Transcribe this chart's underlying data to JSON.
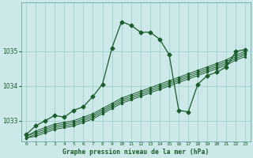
{
  "title": "Graphe pression niveau de la mer (hPa)",
  "background_color": "#cce8e8",
  "grid_color": "#99cccc",
  "line_color": "#1a5c2a",
  "x_labels": [
    "0",
    "1",
    "2",
    "3",
    "4",
    "5",
    "6",
    "7",
    "8",
    "9",
    "10",
    "11",
    "12",
    "13",
    "14",
    "15",
    "16",
    "17",
    "18",
    "19",
    "20",
    "21",
    "22",
    "23"
  ],
  "ylim": [
    1032.4,
    1036.4
  ],
  "yticks": [
    1033,
    1034,
    1035
  ],
  "hours": [
    0,
    1,
    2,
    3,
    4,
    5,
    6,
    7,
    8,
    9,
    10,
    11,
    12,
    13,
    14,
    15,
    16,
    17,
    18,
    19,
    20,
    21,
    22,
    23
  ],
  "series_peak": [
    1032.6,
    1032.85,
    1033.0,
    1033.15,
    1033.1,
    1033.3,
    1033.4,
    1033.7,
    1034.05,
    1035.1,
    1035.85,
    1035.75,
    1035.55,
    1035.55,
    1035.35,
    1034.9,
    1033.3,
    1033.25,
    1034.05,
    1034.3,
    1034.4,
    1034.55,
    1035.0,
    1035.05
  ],
  "series_diag1": [
    1032.55,
    1032.7,
    1032.8,
    1032.9,
    1032.95,
    1033.0,
    1033.1,
    1033.2,
    1033.35,
    1033.5,
    1033.65,
    1033.75,
    1033.85,
    1033.95,
    1034.05,
    1034.15,
    1034.25,
    1034.35,
    1034.45,
    1034.55,
    1034.65,
    1034.75,
    1034.9,
    1035.0
  ],
  "series_diag2": [
    1032.55,
    1032.65,
    1032.75,
    1032.85,
    1032.9,
    1032.95,
    1033.05,
    1033.15,
    1033.3,
    1033.45,
    1033.6,
    1033.7,
    1033.8,
    1033.9,
    1034.0,
    1034.1,
    1034.2,
    1034.3,
    1034.4,
    1034.5,
    1034.6,
    1034.7,
    1034.85,
    1034.95
  ],
  "series_diag3": [
    1032.5,
    1032.6,
    1032.7,
    1032.8,
    1032.85,
    1032.9,
    1033.0,
    1033.1,
    1033.25,
    1033.4,
    1033.55,
    1033.65,
    1033.75,
    1033.85,
    1033.95,
    1034.05,
    1034.15,
    1034.25,
    1034.35,
    1034.45,
    1034.55,
    1034.65,
    1034.8,
    1034.9
  ],
  "series_diag4": [
    1032.5,
    1032.55,
    1032.65,
    1032.75,
    1032.8,
    1032.85,
    1032.95,
    1033.05,
    1033.2,
    1033.35,
    1033.5,
    1033.6,
    1033.7,
    1033.8,
    1033.9,
    1034.0,
    1034.1,
    1034.2,
    1034.3,
    1034.4,
    1034.5,
    1034.6,
    1034.75,
    1034.85
  ],
  "marker_size": 2.5
}
